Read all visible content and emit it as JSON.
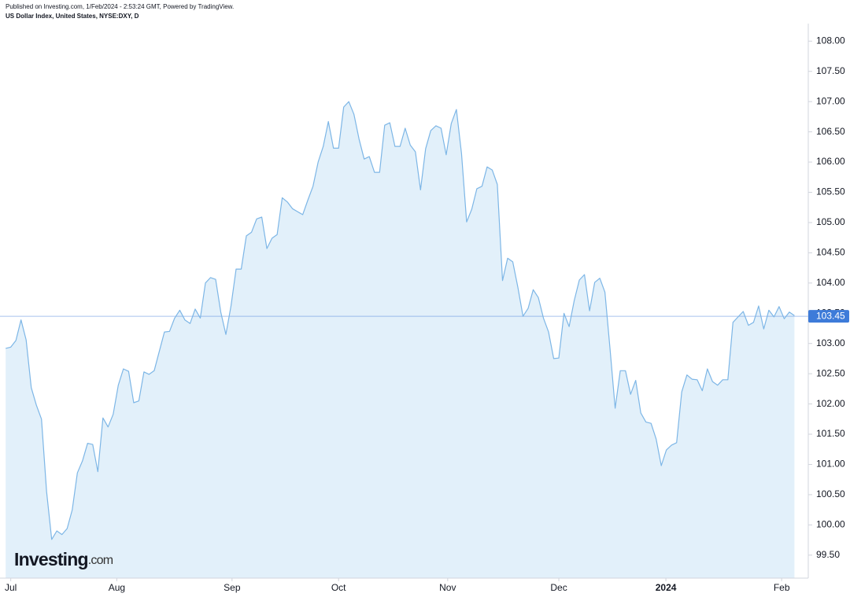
{
  "chart_data": {
    "type": "area",
    "published": "Published on Investing.com, 1/Feb/2024 - 2:53:24 GMT, Powered by TradingView.",
    "title": "US Dollar Index, United States, NYSE:DXY, D",
    "logo_name": "Investing",
    "logo_suffix": ".com",
    "color": "#7db6e6",
    "fill_color": "#e2f0fa",
    "last_value": 103.45,
    "last_color": "#3d7bd9",
    "values": [
      102.92,
      102.94,
      103.05,
      103.39,
      103.06,
      102.27,
      101.98,
      101.75,
      100.55,
      99.76,
      99.9,
      99.84,
      99.94,
      100.25,
      100.86,
      101.06,
      101.35,
      101.33,
      100.88,
      101.77,
      101.62,
      101.83,
      102.31,
      102.58,
      102.54,
      102.02,
      102.05,
      102.53,
      102.49,
      102.55,
      102.87,
      103.19,
      103.2,
      103.42,
      103.55,
      103.39,
      103.33,
      103.57,
      103.42,
      104.0,
      104.09,
      104.06,
      103.52,
      103.15,
      103.62,
      104.23,
      104.23,
      104.78,
      104.84,
      105.06,
      105.09,
      104.57,
      104.74,
      104.8,
      105.41,
      105.34,
      105.23,
      105.18,
      105.13,
      105.37,
      105.6,
      106.0,
      106.26,
      106.67,
      106.23,
      106.23,
      106.91,
      107.0,
      106.79,
      106.38,
      106.05,
      106.09,
      105.83,
      105.83,
      106.61,
      106.65,
      106.26,
      106.26,
      106.56,
      106.28,
      106.17,
      105.54,
      106.22,
      106.52,
      106.6,
      106.56,
      106.12,
      106.64,
      106.87,
      106.14,
      105.01,
      105.22,
      105.56,
      105.6,
      105.92,
      105.87,
      105.63,
      104.04,
      104.41,
      104.35,
      103.93,
      103.45,
      103.58,
      103.89,
      103.76,
      103.42,
      103.19,
      102.75,
      102.76,
      103.5,
      103.28,
      103.71,
      104.05,
      104.14,
      103.54,
      104.01,
      104.08,
      103.85,
      102.91,
      101.93,
      102.55,
      102.55,
      102.16,
      102.39,
      101.85,
      101.7,
      101.68,
      101.42,
      100.98,
      101.24,
      101.32,
      101.36,
      102.2,
      102.48,
      102.41,
      102.4,
      102.22,
      102.58,
      102.37,
      102.31,
      102.4,
      102.4,
      103.35,
      103.44,
      103.53,
      103.3,
      103.35,
      103.62,
      103.24,
      103.55,
      103.44,
      103.61,
      103.41,
      103.52,
      103.46
    ],
    "xlim": [
      -1.1,
      156.7
    ],
    "xticks": [
      {
        "value": 1,
        "label": "Jul"
      },
      {
        "value": 21.7,
        "label": "Aug"
      },
      {
        "value": 44.2,
        "label": "Sep"
      },
      {
        "value": 65,
        "label": "Oct"
      },
      {
        "value": 86.3,
        "label": "Nov"
      },
      {
        "value": 108,
        "label": "Dec"
      },
      {
        "value": 128.9,
        "label": "2024",
        "bold": true
      },
      {
        "value": 151.5,
        "label": "Feb"
      }
    ],
    "ylim": [
      99.12,
      108.29
    ],
    "yticks": [
      {
        "value": 99.5,
        "label": "99.50"
      },
      {
        "value": 100,
        "label": "100.00"
      },
      {
        "value": 100.5,
        "label": "100.50"
      },
      {
        "value": 101,
        "label": "101.00"
      },
      {
        "value": 101.5,
        "label": "101.50"
      },
      {
        "value": 102,
        "label": "102.00"
      },
      {
        "value": 102.5,
        "label": "102.50"
      },
      {
        "value": 103,
        "label": "103.00"
      },
      {
        "value": 103.5,
        "label": "103.50"
      },
      {
        "value": 104,
        "label": "104.00"
      },
      {
        "value": 104.5,
        "label": "104.50"
      },
      {
        "value": 105,
        "label": "105.00"
      },
      {
        "value": 105.5,
        "label": "105.50"
      },
      {
        "value": 106,
        "label": "106.00"
      },
      {
        "value": 106.5,
        "label": "106.50"
      },
      {
        "value": 107,
        "label": "107.00"
      },
      {
        "value": 107.5,
        "label": "107.50"
      },
      {
        "value": 108,
        "label": "108.00"
      }
    ]
  }
}
